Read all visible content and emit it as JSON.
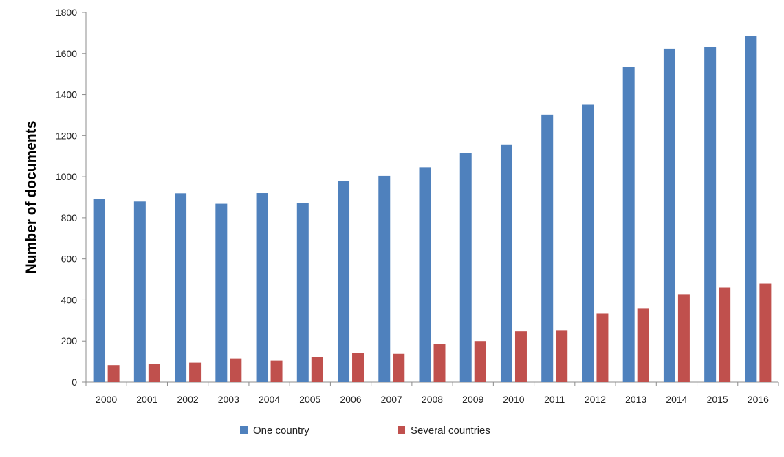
{
  "chart_data": {
    "type": "bar",
    "title": "",
    "xlabel": "",
    "ylabel": "Number of documents",
    "ylim": [
      0,
      1800
    ],
    "yticks": [
      0,
      200,
      400,
      600,
      800,
      1000,
      1200,
      1400,
      1600,
      1800
    ],
    "grid": false,
    "legend": "bottom",
    "categories": [
      "2000",
      "2001",
      "2002",
      "2003",
      "2004",
      "2005",
      "2006",
      "2007",
      "2008",
      "2009",
      "2010",
      "2011",
      "2012",
      "2013",
      "2014",
      "2015",
      "2016"
    ],
    "series": [
      {
        "name": "One country",
        "color": "#4f81bd",
        "values": [
          893,
          879,
          919,
          868,
          920,
          873,
          979,
          1004,
          1046,
          1115,
          1155,
          1302,
          1350,
          1535,
          1623,
          1630,
          1686
        ]
      },
      {
        "name": "Several countries",
        "color": "#c0504d",
        "values": [
          83,
          88,
          95,
          115,
          105,
          122,
          142,
          138,
          185,
          200,
          247,
          253,
          333,
          360,
          427,
          460,
          480
        ]
      }
    ]
  }
}
